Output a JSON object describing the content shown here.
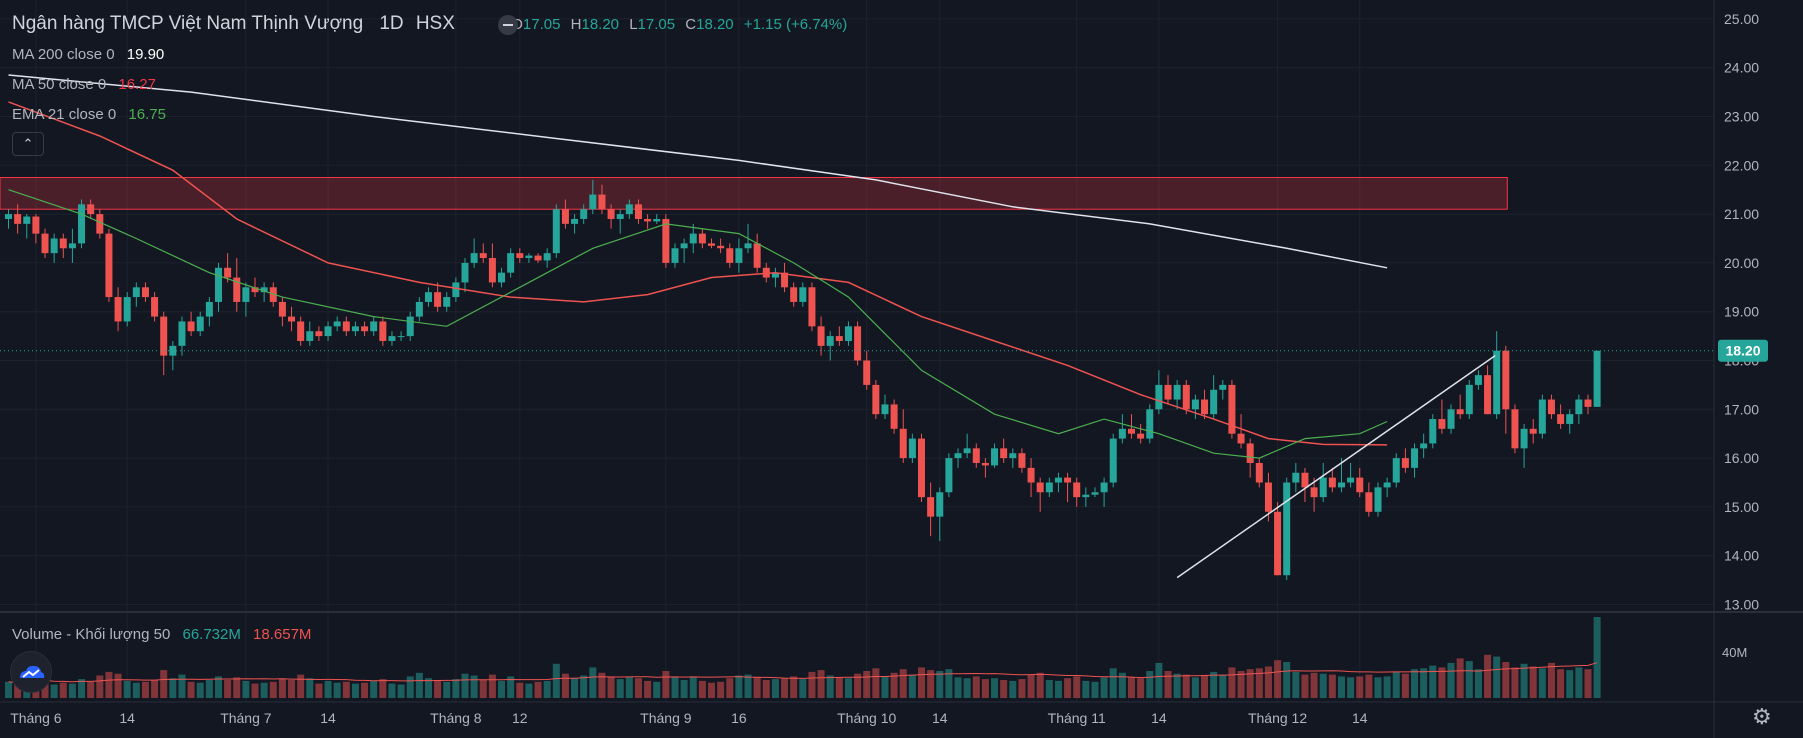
{
  "header": {
    "title": "Ngân hàng TMCP Việt Nam Thịnh Vượng",
    "interval": "1D",
    "exchange": "HSX",
    "ohlc": {
      "o": "17.05",
      "h": "18.20",
      "l": "17.05",
      "c": "18.20",
      "change": "+1.15 (+6.74%)"
    }
  },
  "indicators": [
    {
      "label": "MA 200 close 0",
      "value": "19.90",
      "color": "#ffffff"
    },
    {
      "label": "MA 50 close 0",
      "value": "16.27",
      "color": "#f23645"
    },
    {
      "label": "EMA 21 close 0",
      "value": "16.75",
      "color": "#4caf50"
    }
  ],
  "volume_legend": {
    "label": "Volume - Khối lượng 50",
    "value_up": "66.732M",
    "value_down": "18.657M"
  },
  "collapse_icon": "chevron-up-icon",
  "settings_icon": "gear-icon",
  "colors": {
    "up": "#26a69a",
    "down": "#ef5350",
    "background": "#131722",
    "grid": "#1e222d",
    "zone": "#f23645",
    "price_badge": "#26a69a"
  },
  "chart_data": {
    "type": "candlestick",
    "y_ticks": [
      "25.00",
      "24.00",
      "23.00",
      "22.00",
      "21.00",
      "20.00",
      "19.00",
      "18.00",
      "17.00",
      "16.00",
      "15.00",
      "14.00",
      "13.00"
    ],
    "ylim": [
      12.6,
      25.2
    ],
    "last_price": "18.20",
    "volume_tick": "40M",
    "x_ticks": [
      {
        "label": "Tháng 6",
        "bar": 3
      },
      {
        "label": "14",
        "bar": 13
      },
      {
        "label": "Tháng 7",
        "bar": 26
      },
      {
        "label": "14",
        "bar": 35
      },
      {
        "label": "Tháng 8",
        "bar": 49
      },
      {
        "label": "12",
        "bar": 56
      },
      {
        "label": "Tháng 9",
        "bar": 72
      },
      {
        "label": "16",
        "bar": 80
      },
      {
        "label": "Tháng 10",
        "bar": 94
      },
      {
        "label": "14",
        "bar": 102
      },
      {
        "label": "Tháng 11",
        "bar": 117
      },
      {
        "label": "14",
        "bar": 126
      },
      {
        "label": "Tháng 12",
        "bar": 139
      },
      {
        "label": "14",
        "bar": 148
      }
    ],
    "resistance_zone": {
      "from": 21.1,
      "to": 21.75,
      "start_bar": 0,
      "end_bar": 160
    },
    "trendline": {
      "start": {
        "bar": 128,
        "price": 13.55
      },
      "end": {
        "bar": 159,
        "price": 18.1
      }
    },
    "ma200": [
      [
        0,
        23.85
      ],
      [
        20,
        23.5
      ],
      [
        40,
        23.0
      ],
      [
        60,
        22.55
      ],
      [
        80,
        22.1
      ],
      [
        95,
        21.7
      ],
      [
        110,
        21.15
      ],
      [
        125,
        20.8
      ],
      [
        140,
        20.3
      ],
      [
        151,
        19.9
      ]
    ],
    "ma50": [
      [
        0,
        23.3
      ],
      [
        10,
        22.6
      ],
      [
        18,
        21.9
      ],
      [
        25,
        20.9
      ],
      [
        35,
        20.0
      ],
      [
        45,
        19.6
      ],
      [
        55,
        19.3
      ],
      [
        63,
        19.2
      ],
      [
        70,
        19.35
      ],
      [
        77,
        19.7
      ],
      [
        84,
        19.8
      ],
      [
        92,
        19.6
      ],
      [
        100,
        18.9
      ],
      [
        108,
        18.4
      ],
      [
        116,
        17.9
      ],
      [
        124,
        17.3
      ],
      [
        132,
        16.8
      ],
      [
        138,
        16.4
      ],
      [
        144,
        16.28
      ],
      [
        151,
        16.27
      ]
    ],
    "ema21": [
      [
        0,
        21.5
      ],
      [
        8,
        21.0
      ],
      [
        14,
        20.5
      ],
      [
        22,
        19.8
      ],
      [
        30,
        19.3
      ],
      [
        40,
        18.9
      ],
      [
        48,
        18.7
      ],
      [
        56,
        19.5
      ],
      [
        64,
        20.3
      ],
      [
        72,
        20.8
      ],
      [
        80,
        20.6
      ],
      [
        86,
        20.0
      ],
      [
        92,
        19.3
      ],
      [
        100,
        17.8
      ],
      [
        108,
        16.9
      ],
      [
        115,
        16.5
      ],
      [
        120,
        16.8
      ],
      [
        126,
        16.5
      ],
      [
        132,
        16.1
      ],
      [
        137,
        16.0
      ],
      [
        142,
        16.4
      ],
      [
        148,
        16.5
      ],
      [
        151,
        16.75
      ]
    ],
    "candles": [
      [
        20.9,
        21.1,
        20.7,
        21.0
      ],
      [
        21.0,
        21.2,
        20.6,
        20.8
      ],
      [
        20.8,
        21.0,
        20.5,
        20.95
      ],
      [
        20.95,
        21.0,
        20.4,
        20.6
      ],
      [
        20.6,
        20.7,
        20.1,
        20.2
      ],
      [
        20.2,
        20.6,
        20.0,
        20.5
      ],
      [
        20.5,
        20.6,
        20.1,
        20.3
      ],
      [
        20.3,
        20.7,
        20.0,
        20.4
      ],
      [
        20.4,
        21.3,
        20.3,
        21.2
      ],
      [
        21.2,
        21.3,
        20.9,
        21.0
      ],
      [
        21.0,
        21.1,
        20.5,
        20.6
      ],
      [
        20.6,
        20.7,
        19.2,
        19.3
      ],
      [
        19.3,
        19.5,
        18.6,
        18.8
      ],
      [
        18.8,
        19.4,
        18.7,
        19.3
      ],
      [
        19.3,
        19.6,
        19.1,
        19.5
      ],
      [
        19.5,
        19.6,
        19.2,
        19.3
      ],
      [
        19.3,
        19.4,
        18.8,
        18.9
      ],
      [
        18.9,
        19.0,
        17.7,
        18.1
      ],
      [
        18.1,
        18.4,
        17.8,
        18.3
      ],
      [
        18.3,
        18.9,
        18.1,
        18.8
      ],
      [
        18.8,
        19.0,
        18.5,
        18.6
      ],
      [
        18.6,
        19.0,
        18.5,
        18.9
      ],
      [
        18.9,
        19.3,
        18.7,
        19.2
      ],
      [
        19.2,
        20.0,
        19.0,
        19.9
      ],
      [
        19.9,
        20.2,
        19.6,
        19.7
      ],
      [
        19.7,
        20.1,
        19.0,
        19.2
      ],
      [
        19.2,
        19.6,
        18.9,
        19.5
      ],
      [
        19.5,
        19.7,
        19.3,
        19.4
      ],
      [
        19.4,
        19.6,
        19.2,
        19.5
      ],
      [
        19.5,
        19.6,
        19.1,
        19.2
      ],
      [
        19.2,
        19.3,
        18.7,
        18.9
      ],
      [
        18.9,
        19.1,
        18.6,
        18.8
      ],
      [
        18.8,
        18.9,
        18.3,
        18.4
      ],
      [
        18.4,
        18.8,
        18.3,
        18.6
      ],
      [
        18.6,
        18.7,
        18.4,
        18.5
      ],
      [
        18.5,
        18.8,
        18.4,
        18.7
      ],
      [
        18.7,
        18.9,
        18.6,
        18.8
      ],
      [
        18.8,
        18.9,
        18.5,
        18.6
      ],
      [
        18.6,
        18.8,
        18.5,
        18.7
      ],
      [
        18.7,
        18.8,
        18.5,
        18.6
      ],
      [
        18.6,
        18.9,
        18.5,
        18.8
      ],
      [
        18.8,
        18.9,
        18.3,
        18.4
      ],
      [
        18.4,
        18.6,
        18.3,
        18.5
      ],
      [
        18.5,
        18.6,
        18.4,
        18.5
      ],
      [
        18.5,
        19.0,
        18.4,
        18.9
      ],
      [
        18.9,
        19.3,
        18.8,
        19.2
      ],
      [
        19.2,
        19.5,
        19.1,
        19.4
      ],
      [
        19.4,
        19.6,
        19.0,
        19.1
      ],
      [
        19.1,
        19.4,
        19.0,
        19.3
      ],
      [
        19.3,
        19.7,
        19.2,
        19.6
      ],
      [
        19.6,
        20.1,
        19.4,
        20.0
      ],
      [
        20.0,
        20.5,
        19.9,
        20.2
      ],
      [
        20.2,
        20.4,
        20.0,
        20.1
      ],
      [
        20.1,
        20.4,
        19.5,
        19.6
      ],
      [
        19.6,
        19.9,
        19.5,
        19.8
      ],
      [
        19.8,
        20.3,
        19.7,
        20.2
      ],
      [
        20.2,
        20.3,
        20.0,
        20.1
      ],
      [
        20.1,
        20.2,
        20.0,
        20.15
      ],
      [
        20.15,
        20.2,
        20.0,
        20.05
      ],
      [
        20.05,
        20.3,
        19.9,
        20.2
      ],
      [
        20.2,
        21.2,
        20.1,
        21.1
      ],
      [
        21.1,
        21.3,
        20.7,
        20.8
      ],
      [
        20.8,
        21.0,
        20.6,
        20.9
      ],
      [
        20.9,
        21.2,
        20.8,
        21.1
      ],
      [
        21.1,
        21.7,
        21.0,
        21.4
      ],
      [
        21.4,
        21.6,
        21.0,
        21.1
      ],
      [
        21.1,
        21.2,
        20.7,
        20.9
      ],
      [
        20.9,
        21.1,
        20.6,
        21.0
      ],
      [
        21.0,
        21.3,
        20.9,
        21.2
      ],
      [
        21.2,
        21.3,
        20.8,
        20.9
      ],
      [
        20.9,
        21.0,
        20.7,
        20.85
      ],
      [
        20.85,
        21.0,
        20.8,
        20.9
      ],
      [
        20.9,
        21.0,
        19.9,
        20.0
      ],
      [
        20.0,
        20.4,
        19.9,
        20.3
      ],
      [
        20.3,
        20.5,
        20.0,
        20.4
      ],
      [
        20.4,
        20.8,
        20.2,
        20.6
      ],
      [
        20.6,
        20.7,
        20.3,
        20.4
      ],
      [
        20.4,
        20.5,
        20.3,
        20.35
      ],
      [
        20.35,
        20.5,
        20.2,
        20.3
      ],
      [
        20.3,
        20.4,
        19.9,
        20.0
      ],
      [
        20.0,
        20.5,
        19.8,
        20.3
      ],
      [
        20.3,
        20.8,
        20.2,
        20.4
      ],
      [
        20.4,
        20.6,
        19.8,
        19.9
      ],
      [
        19.9,
        20.0,
        19.6,
        19.7
      ],
      [
        19.7,
        19.9,
        19.5,
        19.8
      ],
      [
        19.8,
        20.0,
        19.4,
        19.5
      ],
      [
        19.5,
        19.6,
        19.1,
        19.2
      ],
      [
        19.2,
        19.6,
        19.1,
        19.5
      ],
      [
        19.5,
        19.6,
        18.6,
        18.7
      ],
      [
        18.7,
        18.9,
        18.1,
        18.3
      ],
      [
        18.3,
        18.6,
        18.0,
        18.5
      ],
      [
        18.5,
        18.7,
        18.3,
        18.4
      ],
      [
        18.4,
        18.8,
        18.3,
        18.7
      ],
      [
        18.7,
        18.8,
        17.9,
        18.0
      ],
      [
        18.0,
        18.2,
        17.4,
        17.5
      ],
      [
        17.5,
        17.6,
        16.8,
        16.9
      ],
      [
        16.9,
        17.3,
        16.8,
        17.1
      ],
      [
        17.1,
        17.2,
        16.5,
        16.6
      ],
      [
        16.6,
        17.0,
        15.9,
        16.0
      ],
      [
        16.0,
        16.5,
        15.9,
        16.4
      ],
      [
        16.4,
        16.5,
        15.1,
        15.2
      ],
      [
        15.2,
        15.5,
        14.4,
        14.8
      ],
      [
        14.8,
        15.4,
        14.3,
        15.3
      ],
      [
        15.3,
        16.1,
        15.2,
        16.0
      ],
      [
        16.0,
        16.2,
        15.8,
        16.1
      ],
      [
        16.1,
        16.5,
        16.0,
        16.2
      ],
      [
        16.2,
        16.3,
        15.8,
        15.9
      ],
      [
        15.9,
        16.0,
        15.6,
        15.85
      ],
      [
        15.85,
        16.3,
        15.8,
        16.2
      ],
      [
        16.2,
        16.4,
        15.9,
        16.0
      ],
      [
        16.0,
        16.2,
        15.8,
        16.1
      ],
      [
        16.1,
        16.2,
        15.7,
        15.8
      ],
      [
        15.8,
        16.0,
        15.2,
        15.5
      ],
      [
        15.5,
        15.6,
        14.9,
        15.3
      ],
      [
        15.3,
        15.6,
        15.2,
        15.5
      ],
      [
        15.5,
        15.7,
        15.3,
        15.6
      ],
      [
        15.6,
        15.7,
        15.1,
        15.5
      ],
      [
        15.5,
        15.6,
        15.0,
        15.2
      ],
      [
        15.2,
        15.4,
        15.0,
        15.25
      ],
      [
        15.25,
        15.4,
        15.2,
        15.3
      ],
      [
        15.3,
        15.6,
        15.0,
        15.5
      ],
      [
        15.5,
        16.5,
        15.4,
        16.4
      ],
      [
        16.4,
        16.9,
        16.3,
        16.6
      ],
      [
        16.6,
        16.9,
        16.4,
        16.5
      ],
      [
        16.5,
        16.7,
        16.3,
        16.4
      ],
      [
        16.4,
        17.1,
        16.3,
        17.0
      ],
      [
        17.0,
        17.8,
        16.9,
        17.5
      ],
      [
        17.5,
        17.7,
        17.1,
        17.2
      ],
      [
        17.2,
        17.6,
        17.0,
        17.5
      ],
      [
        17.5,
        17.6,
        16.9,
        17.0
      ],
      [
        17.0,
        17.3,
        16.8,
        17.2
      ],
      [
        17.2,
        17.4,
        16.8,
        16.9
      ],
      [
        16.9,
        17.7,
        16.8,
        17.4
      ],
      [
        17.4,
        17.6,
        17.2,
        17.5
      ],
      [
        17.5,
        17.6,
        16.4,
        16.5
      ],
      [
        16.5,
        16.9,
        16.2,
        16.3
      ],
      [
        16.3,
        16.4,
        15.6,
        15.9
      ],
      [
        15.9,
        16.0,
        15.4,
        15.5
      ],
      [
        15.5,
        15.7,
        14.7,
        14.9
      ],
      [
        14.9,
        15.1,
        13.6,
        13.6
      ],
      [
        13.6,
        15.6,
        13.5,
        15.5
      ],
      [
        15.5,
        15.9,
        15.3,
        15.7
      ],
      [
        15.7,
        15.8,
        15.1,
        15.4
      ],
      [
        15.4,
        15.6,
        14.9,
        15.2
      ],
      [
        15.2,
        15.9,
        15.1,
        15.6
      ],
      [
        15.6,
        15.8,
        15.3,
        15.4
      ],
      [
        15.4,
        16.0,
        15.3,
        15.5
      ],
      [
        15.5,
        15.9,
        15.4,
        15.6
      ],
      [
        15.6,
        15.8,
        15.2,
        15.3
      ],
      [
        15.3,
        15.5,
        14.8,
        14.9
      ],
      [
        14.9,
        15.5,
        14.8,
        15.4
      ],
      [
        15.4,
        15.6,
        15.2,
        15.5
      ],
      [
        15.5,
        16.1,
        15.4,
        16.0
      ],
      [
        16.0,
        16.2,
        15.7,
        15.8
      ],
      [
        15.8,
        16.3,
        15.6,
        16.2
      ],
      [
        16.2,
        16.5,
        16.0,
        16.3
      ],
      [
        16.3,
        16.9,
        16.2,
        16.8
      ],
      [
        16.8,
        17.2,
        16.5,
        16.6
      ],
      [
        16.6,
        17.1,
        16.5,
        17.0
      ],
      [
        17.0,
        17.3,
        16.8,
        16.9
      ],
      [
        16.9,
        17.6,
        16.8,
        17.5
      ],
      [
        17.5,
        17.8,
        17.4,
        17.7
      ],
      [
        17.7,
        17.9,
        16.9,
        16.9
      ],
      [
        16.9,
        18.6,
        16.8,
        18.2
      ],
      [
        18.2,
        18.3,
        16.5,
        17.0
      ],
      [
        17.0,
        17.1,
        16.1,
        16.2
      ],
      [
        16.2,
        16.7,
        15.8,
        16.6
      ],
      [
        16.6,
        16.8,
        16.3,
        16.5
      ],
      [
        16.5,
        17.3,
        16.4,
        17.2
      ],
      [
        17.2,
        17.3,
        16.8,
        16.9
      ],
      [
        16.9,
        17.1,
        16.6,
        16.7
      ],
      [
        16.7,
        17.0,
        16.5,
        16.9
      ],
      [
        16.9,
        17.3,
        16.7,
        17.2
      ],
      [
        17.2,
        17.3,
        16.9,
        17.05
      ],
      [
        17.05,
        18.2,
        17.05,
        18.2
      ]
    ],
    "volumes": [
      1.8,
      1.6,
      1.9,
      2.0,
      2.4,
      1.5,
      1.7,
      1.6,
      2.1,
      1.8,
      2.5,
      2.9,
      2.7,
      1.9,
      1.7,
      1.8,
      2.0,
      3.1,
      2.2,
      2.6,
      1.8,
      1.7,
      2.0,
      2.4,
      2.0,
      2.3,
      1.9,
      1.6,
      1.7,
      1.8,
      2.1,
      2.0,
      2.6,
      2.2,
      1.6,
      1.9,
      1.7,
      1.8,
      1.6,
      1.7,
      1.9,
      2.1,
      1.6,
      1.5,
      2.4,
      2.8,
      2.2,
      2.0,
      1.8,
      2.1,
      2.7,
      2.5,
      2.0,
      2.6,
      1.9,
      2.4,
      1.7,
      1.6,
      1.8,
      1.9,
      3.8,
      2.7,
      2.2,
      2.5,
      3.4,
      2.8,
      2.4,
      2.1,
      2.3,
      2.2,
      1.9,
      1.8,
      3.0,
      2.3,
      2.0,
      2.4,
      1.9,
      1.7,
      1.8,
      2.2,
      2.5,
      2.6,
      2.3,
      2.0,
      2.1,
      2.2,
      2.4,
      2.1,
      2.9,
      3.1,
      2.5,
      2.3,
      2.2,
      2.7,
      3.0,
      3.3,
      2.4,
      2.8,
      3.2,
      2.6,
      3.4,
      3.1,
      3.0,
      3.2,
      2.3,
      2.2,
      2.4,
      2.1,
      2.2,
      2.0,
      1.9,
      2.1,
      2.6,
      2.8,
      2.0,
      1.9,
      2.2,
      2.4,
      1.9,
      1.8,
      2.3,
      3.3,
      2.8,
      2.3,
      2.2,
      3.0,
      3.9,
      3.0,
      2.7,
      2.6,
      2.3,
      2.5,
      2.9,
      2.6,
      3.4,
      3.0,
      3.2,
      3.3,
      3.5,
      4.2,
      4.0,
      2.9,
      2.6,
      2.8,
      2.7,
      2.6,
      2.4,
      2.3,
      2.4,
      2.6,
      2.3,
      2.4,
      2.9,
      2.7,
      3.2,
      3.3,
      3.6,
      3.4,
      3.9,
      4.4,
      4.1,
      3.2,
      4.8,
      4.6,
      4.0,
      3.4,
      3.8,
      3.5,
      3.3,
      3.9,
      3.2,
      3.1,
      3.4,
      3.2,
      9.0
    ]
  }
}
